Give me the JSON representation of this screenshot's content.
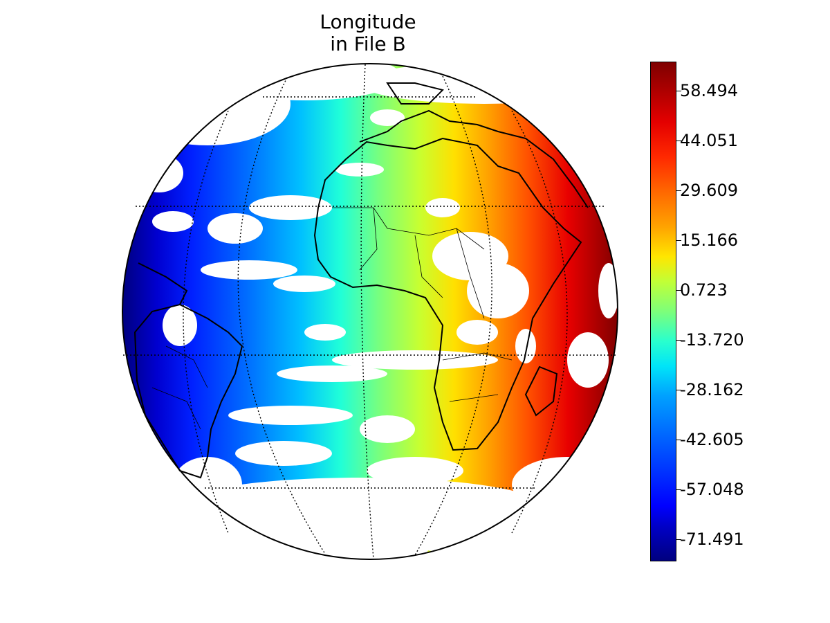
{
  "title": {
    "line1": "Longitude",
    "line2": "in File B"
  },
  "map": {
    "projection": "orthographic",
    "center_lon": 0,
    "center_lat": 10,
    "graticule": "dotted",
    "field": "longitude",
    "value_range": [
      -78,
      67
    ]
  },
  "colorbar": {
    "colormap": "jet",
    "range": [
      -78,
      67
    ],
    "ticks": [
      58.494,
      44.051,
      29.609,
      15.166,
      0.723,
      -13.72,
      -28.162,
      -42.605,
      -57.048,
      -71.491
    ],
    "labels": [
      "58.494",
      "44.051",
      "29.609",
      "15.166",
      "0.723",
      "-13.720",
      "-28.162",
      "-42.605",
      "-57.048",
      "-71.491"
    ]
  }
}
